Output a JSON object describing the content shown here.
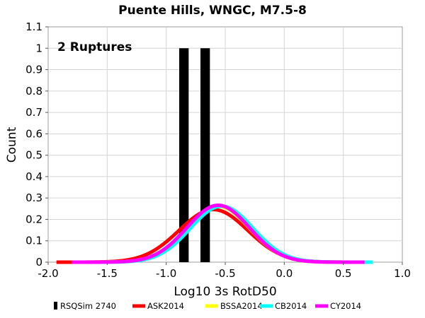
{
  "chart_data": {
    "type": "line",
    "title": "Puente Hills, WNGC, M7.5-8",
    "annotation": "2 Ruptures",
    "xlabel": "Log10 3s RotD50",
    "ylabel": "Count",
    "xlim": [
      -2.0,
      1.0
    ],
    "ylim": [
      0,
      1.1
    ],
    "x_ticks": [
      "-2.0",
      "-1.5",
      "-1.0",
      "-0.5",
      "0.0",
      "0.5",
      "1.0"
    ],
    "y_ticks": [
      "0",
      "0.1",
      "0.2",
      "0.3",
      "0.4",
      "0.5",
      "0.6",
      "0.7",
      "0.8",
      "0.9",
      "1",
      "1.1"
    ],
    "grid": true,
    "legend_position": "bottom",
    "histogram": {
      "name": "RSQSim 2740",
      "color": "#000000",
      "bars": [
        {
          "x_start": -0.89,
          "x_end": -0.81,
          "count": 1
        },
        {
          "x_start": -0.71,
          "x_end": -0.63,
          "count": 1
        }
      ]
    },
    "series": [
      {
        "name": "ASK2014",
        "color": "#ff0000",
        "mean": -0.6,
        "sd": 0.29,
        "peak": 0.246,
        "x_range": [
          -1.93,
          0.6
        ]
      },
      {
        "name": "BSSA2014",
        "color": "#ffff00",
        "mean": -0.56,
        "sd": 0.265,
        "peak": 0.262,
        "x_range": [
          -1.8,
          0.7
        ]
      },
      {
        "name": "CB2014",
        "color": "#00ffff",
        "mean": -0.53,
        "sd": 0.265,
        "peak": 0.262,
        "x_range": [
          -1.78,
          0.75
        ]
      },
      {
        "name": "CY2014",
        "color": "#ff00ff",
        "mean": -0.56,
        "sd": 0.265,
        "peak": 0.266,
        "x_range": [
          -1.8,
          0.68
        ]
      }
    ]
  }
}
